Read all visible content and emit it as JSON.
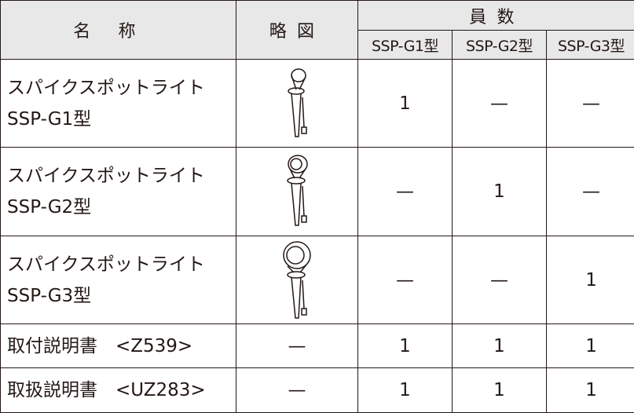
{
  "table": {
    "header": {
      "name": "名称",
      "diagram": "略図",
      "count": "員数",
      "models": [
        "SSP-G1型",
        "SSP-G2型",
        "SSP-G3型"
      ]
    },
    "rows": [
      {
        "name": [
          "スパイクスポットライト",
          "SSP-G1型"
        ],
        "counts": [
          "1",
          "—",
          "—"
        ]
      },
      {
        "name": [
          "スパイクスポットライト",
          "SSP-G2型"
        ],
        "counts": [
          "—",
          "1",
          "—"
        ]
      },
      {
        "name": [
          "スパイクスポットライト",
          "SSP-G3型"
        ],
        "counts": [
          "—",
          "—",
          "1"
        ]
      },
      {
        "name": [
          "取付説明書　<Z539>"
        ],
        "diagram": "—",
        "counts": [
          "1",
          "1",
          "1"
        ]
      },
      {
        "name": [
          "取扱説明書　<UZ283>"
        ],
        "diagram": "—",
        "counts": [
          "1",
          "1",
          "1"
        ]
      }
    ]
  }
}
